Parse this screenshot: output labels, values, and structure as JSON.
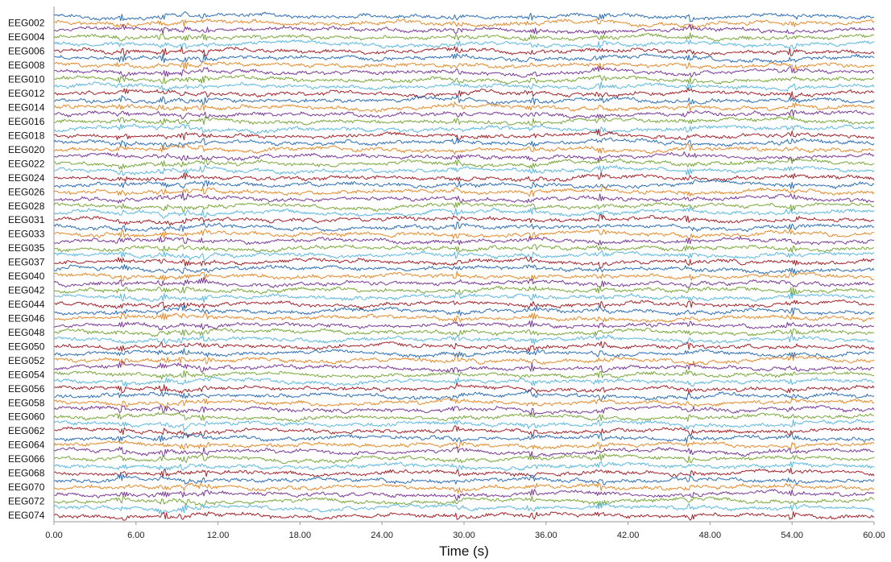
{
  "chart_data": {
    "type": "line",
    "subtype": "stacked-eeg-traces",
    "title": "",
    "xlabel": "Time (s)",
    "ylabel": "",
    "xlim": [
      0,
      60
    ],
    "x_ticks": [
      "0.00",
      "6.00",
      "12.00",
      "18.00",
      "24.00",
      "30.00",
      "36.00",
      "42.00",
      "48.00",
      "54.00",
      "60.00"
    ],
    "x_tick_values": [
      0,
      6,
      12,
      18,
      24,
      30,
      36,
      42,
      48,
      54,
      60
    ],
    "grid": false,
    "legend": "none",
    "channel_labels": [
      "EEG002",
      "EEG004",
      "EEG006",
      "EEG008",
      "EEG010",
      "EEG012",
      "EEG014",
      "EEG016",
      "EEG018",
      "EEG020",
      "EEG022",
      "EEG024",
      "EEG026",
      "EEG028",
      "EEG031",
      "EEG033",
      "EEG035",
      "EEG037",
      "EEG040",
      "EEG042",
      "EEG044",
      "EEG046",
      "EEG048",
      "EEG050",
      "EEG052",
      "EEG054",
      "EEG056",
      "EEG058",
      "EEG060",
      "EEG062",
      "EEG064",
      "EEG066",
      "EEG068",
      "EEG070",
      "EEG072",
      "EEG074"
    ],
    "trace_count": 72,
    "trace_colors": [
      "#2f6fb5",
      "#e58a2b",
      "#7b3a96",
      "#79a83b",
      "#5bb8e0",
      "#a3242b"
    ],
    "artifact_times_s": [
      5,
      8,
      9.5,
      11,
      29.5,
      35,
      40,
      46.5,
      54
    ]
  }
}
